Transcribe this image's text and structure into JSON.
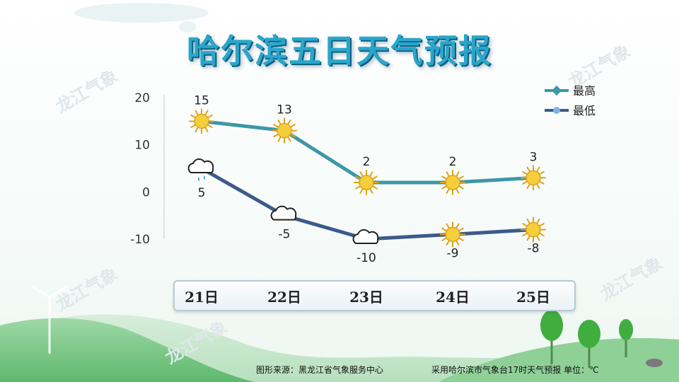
{
  "title": "哈尔滨五日天气预报",
  "watermark": "龙江气象",
  "colors": {
    "high": "#3c97a8",
    "low": "#3c5a8a",
    "title": "#2aa6cc",
    "sun": "#f4c430"
  },
  "chart_data": {
    "type": "line",
    "title": "哈尔滨五日天气预报",
    "categories": [
      "21日",
      "22日",
      "23日",
      "24日",
      "25日"
    ],
    "ylim": [
      -10,
      20
    ],
    "yticks": [
      "20",
      "10",
      "0",
      "-10"
    ],
    "legend_position": "top-right",
    "grid": false,
    "series": [
      {
        "name": "最高",
        "values": [
          15,
          13,
          2,
          2,
          3
        ],
        "labels": [
          "15",
          "13",
          "2",
          "2",
          "3"
        ],
        "icons": [
          "sun-icon",
          "sun-icon",
          "sun-icon",
          "sun-icon",
          "sun-icon"
        ]
      },
      {
        "name": "最低",
        "values": [
          5,
          -5,
          -10,
          -9,
          -8
        ],
        "labels": [
          "5",
          "-5",
          "-10",
          "-9",
          "-8"
        ],
        "icons": [
          "rain-cloud-icon",
          "cloud-icon",
          "cloud-icon",
          "sun-icon",
          "sun-icon"
        ]
      }
    ]
  },
  "footer": {
    "source": "图形来源：黑龙江省气象服务中心",
    "note": "采用哈尔滨市气象台17时天气预报 单位：℃"
  }
}
